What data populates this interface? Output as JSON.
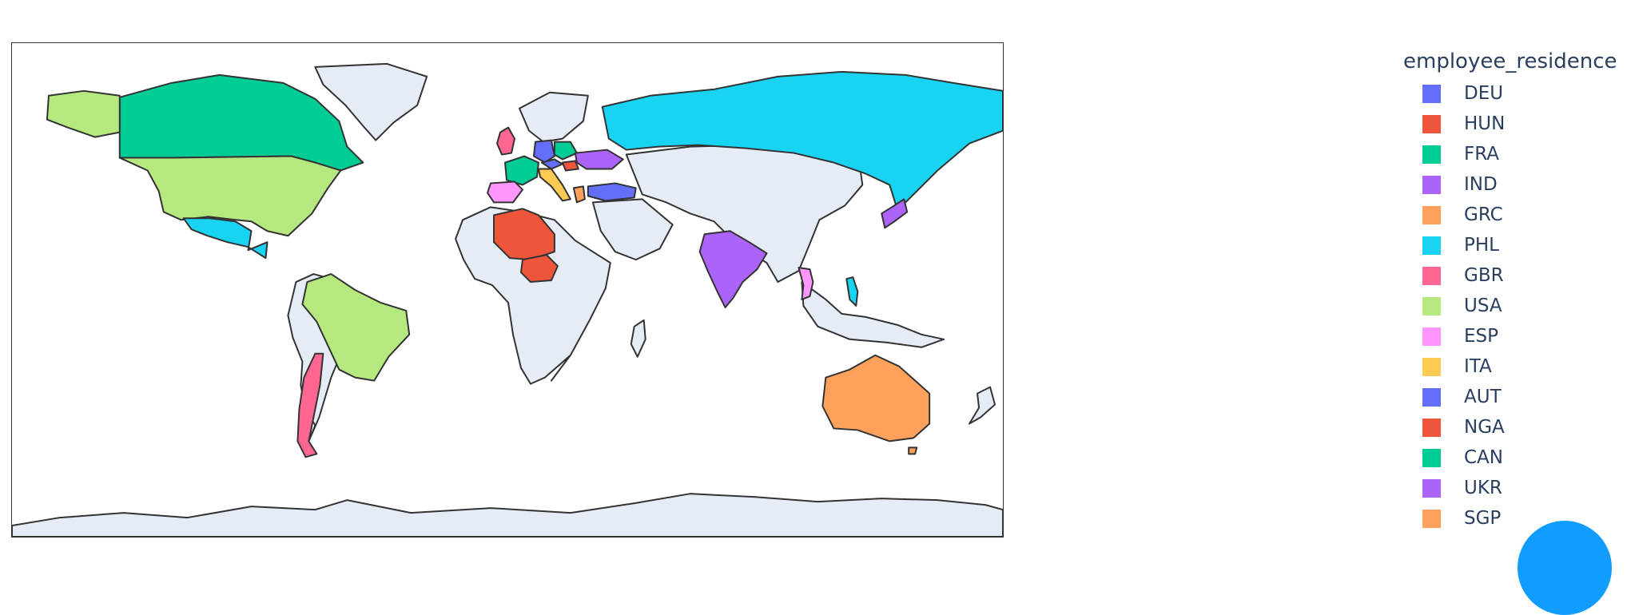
{
  "legend": {
    "title": "employee_residence",
    "items": [
      {
        "code": "DEU",
        "color": "#636efa"
      },
      {
        "code": "HUN",
        "color": "#ef553b"
      },
      {
        "code": "FRA",
        "color": "#00cc96"
      },
      {
        "code": "IND",
        "color": "#ab63fa"
      },
      {
        "code": "GRC",
        "color": "#ffa15a"
      },
      {
        "code": "PHL",
        "color": "#19d3f3"
      },
      {
        "code": "GBR",
        "color": "#ff6692"
      },
      {
        "code": "USA",
        "color": "#b6e880"
      },
      {
        "code": "ESP",
        "color": "#ff97ff"
      },
      {
        "code": "ITA",
        "color": "#fecb52"
      },
      {
        "code": "AUT",
        "color": "#636efa"
      },
      {
        "code": "NGA",
        "color": "#ef553b"
      },
      {
        "code": "CAN",
        "color": "#00cc96"
      },
      {
        "code": "UKR",
        "color": "#ab63fa"
      },
      {
        "code": "SGP",
        "color": "#ffa15a"
      }
    ]
  },
  "map": {
    "land_color": "#e5ecf6",
    "border_color": "#333333",
    "extra_colored_countries": {
      "RUS": "#19d3f3",
      "MEX": "#19d3f3",
      "BRA": "#b6e880",
      "CHL": "#ff6692",
      "DZA": "#ef553b",
      "AUS": "#ffa15a",
      "JPN": "#ab63fa",
      "VNM": "#ff97ff",
      "TUR": "#636efa",
      "POL": "#00cc96"
    }
  },
  "fab": {
    "icon": "help-circle-icon",
    "color": "#119dff"
  }
}
